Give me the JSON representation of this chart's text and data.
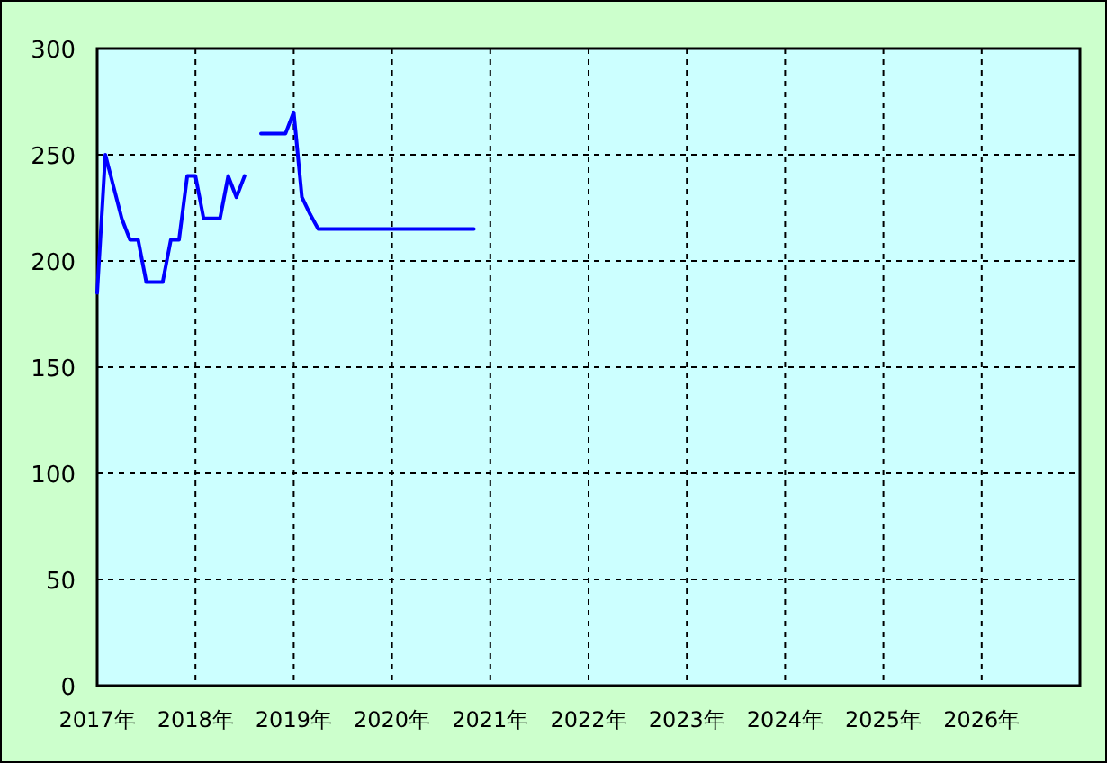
{
  "chart_data": {
    "type": "line",
    "x": [
      "2017-01",
      "2017-02",
      "2017-03",
      "2017-04",
      "2017-05",
      "2017-06",
      "2017-07",
      "2017-08",
      "2017-09",
      "2017-10",
      "2017-11",
      "2017-12",
      "2018-01",
      "2018-02",
      "2018-03",
      "2018-04",
      "2018-05",
      "2018-06",
      "2018-07",
      "2018-08",
      "2018-09",
      "2018-10",
      "2018-11",
      "2018-12",
      "2019-01",
      "2019-02",
      "2019-03",
      "2019-04",
      "2019-05",
      "2019-06",
      "2019-07",
      "2019-08",
      "2019-09",
      "2019-10",
      "2019-11",
      "2019-12",
      "2020-01",
      "2020-02",
      "2020-03",
      "2020-04",
      "2020-05",
      "2020-06",
      "2020-07",
      "2020-08",
      "2020-09",
      "2020-10",
      "2020-11"
    ],
    "series": [
      {
        "color": "#0000ff",
        "values": [
          185,
          250,
          235,
          220,
          210,
          210,
          190,
          190,
          190,
          210,
          210,
          240,
          240,
          220,
          220,
          220,
          240,
          230,
          240,
          null,
          260,
          260,
          260,
          260,
          270,
          230,
          222,
          215,
          215,
          215,
          215,
          215,
          215,
          215,
          215,
          215,
          215,
          215,
          215,
          215,
          215,
          215,
          215,
          215,
          215,
          215,
          215
        ]
      }
    ],
    "xlim": [
      "2017",
      "2027"
    ],
    "xticks": [
      {
        "value": "2017",
        "label": "2017年"
      },
      {
        "value": "2018",
        "label": "2018年"
      },
      {
        "value": "2019",
        "label": "2019年"
      },
      {
        "value": "2020",
        "label": "2020年"
      },
      {
        "value": "2021",
        "label": "2021年"
      },
      {
        "value": "2022",
        "label": "2022年"
      },
      {
        "value": "2023",
        "label": "2023年"
      },
      {
        "value": "2024",
        "label": "2024年"
      },
      {
        "value": "2025",
        "label": "2025年"
      },
      {
        "value": "2026",
        "label": "2026年"
      }
    ],
    "ylim": [
      0,
      300
    ],
    "yticks": [
      0,
      50,
      100,
      150,
      200,
      250,
      300
    ],
    "grid": true,
    "line_style": "solid",
    "marker": "none"
  }
}
